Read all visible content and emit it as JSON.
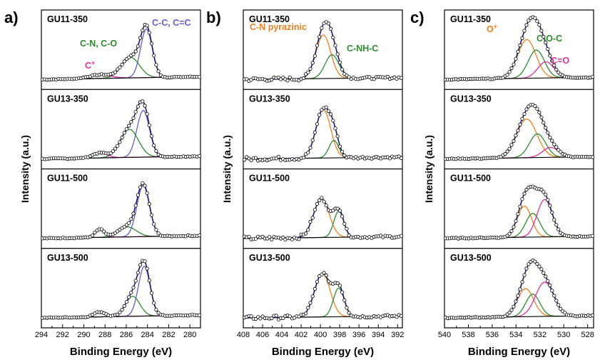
{
  "chart_data": [
    {
      "panel": "a)",
      "type": "line",
      "xlabel": "Binding Energy  (eV)",
      "ylabel": "Intensity  (a.u.)",
      "xlim": [
        294,
        279
      ],
      "reversed_x": true,
      "xticks": [
        "294",
        "292",
        "290",
        "288",
        "286",
        "284",
        "282",
        "280"
      ],
      "annotations": [
        {
          "text": "C-C, C=C",
          "color": "#6a5acd"
        },
        {
          "text": "C-N, C-O",
          "color": "#2e8b2e"
        },
        {
          "text": "C",
          "sup": "+",
          "color": "#e0309a"
        }
      ],
      "colors": {
        "envelope": "#1a1a70",
        "peak_main": "#6a5acd",
        "peak_cn": "#2e8b2e",
        "peak_cplus": "#e0309a",
        "baseline": "#000000"
      },
      "traces": [
        {
          "name": "GU11-350",
          "peaks": [
            {
              "component": "C-C, C=C",
              "center": 284.1,
              "fwhm": 1.3,
              "height": 0.78
            },
            {
              "component": "C-N, C-O",
              "center": 285.6,
              "fwhm": 2.0,
              "height": 0.33
            },
            {
              "component": "C+",
              "center": 288.5,
              "fwhm": 2.4,
              "height": 0.06
            }
          ]
        },
        {
          "name": "GU13-350",
          "peaks": [
            {
              "component": "C-C, C=C",
              "center": 284.4,
              "fwhm": 1.4,
              "height": 0.75
            },
            {
              "component": "C-N, C-O",
              "center": 285.7,
              "fwhm": 2.0,
              "height": 0.45
            },
            {
              "component": "C+",
              "center": 288.5,
              "fwhm": 1.6,
              "height": 0.08
            }
          ]
        },
        {
          "name": "GU11-500",
          "peaks": [
            {
              "component": "C-C, C=C",
              "center": 284.4,
              "fwhm": 1.4,
              "height": 0.82
            },
            {
              "component": "C-N, C-O",
              "center": 285.9,
              "fwhm": 2.0,
              "height": 0.16
            },
            {
              "component": "C+",
              "center": 288.5,
              "fwhm": 1.0,
              "height": 0.13
            }
          ]
        },
        {
          "name": "GU13-500",
          "peaks": [
            {
              "component": "C-C, C=C",
              "center": 284.3,
              "fwhm": 1.3,
              "height": 0.8
            },
            {
              "component": "C-N, C-O",
              "center": 285.4,
              "fwhm": 1.6,
              "height": 0.32
            },
            {
              "component": "C+",
              "center": 288.5,
              "fwhm": 1.3,
              "height": 0.08
            }
          ]
        }
      ]
    },
    {
      "panel": "b)",
      "type": "line",
      "xlabel": "Binding Energy  (eV)",
      "ylabel": "Intensity  (a.u.)",
      "xlim": [
        408,
        391.5
      ],
      "reversed_x": true,
      "xticks": [
        "408",
        "406",
        "404",
        "402",
        "400",
        "398",
        "396",
        "394",
        "392"
      ],
      "annotations": [
        {
          "text": "C-N pyrazinic",
          "color": "#f07f20"
        },
        {
          "text": "C-NH-C",
          "color": "#2e8b2e"
        }
      ],
      "colors": {
        "envelope": "#1a1a70",
        "peak_pyrazinic": "#f07f20",
        "peak_cnhc": "#2e8b2e",
        "baseline": "#000000"
      },
      "traces": [
        {
          "name": "GU11-350",
          "peaks": [
            {
              "component": "C-N pyrazinic",
              "center": 399.7,
              "fwhm": 1.8,
              "height": 0.7
            },
            {
              "component": "C-NH-C",
              "center": 398.8,
              "fwhm": 1.7,
              "height": 0.38
            }
          ]
        },
        {
          "name": "GU13-350",
          "peaks": [
            {
              "component": "C-N pyrazinic",
              "center": 399.7,
              "fwhm": 1.8,
              "height": 0.78
            },
            {
              "component": "C-NH-C",
              "center": 398.6,
              "fwhm": 1.2,
              "height": 0.28
            }
          ]
        },
        {
          "name": "GU11-500",
          "peaks": [
            {
              "component": "C-N pyrazinic",
              "center": 399.9,
              "fwhm": 1.9,
              "height": 0.62
            },
            {
              "component": "C-NH-C",
              "center": 398.1,
              "fwhm": 1.2,
              "height": 0.42
            }
          ]
        },
        {
          "name": "GU13-500",
          "peaks": [
            {
              "component": "C-N pyrazinic",
              "center": 399.8,
              "fwhm": 1.9,
              "height": 0.7
            },
            {
              "component": "C-NH-C",
              "center": 398.1,
              "fwhm": 1.3,
              "height": 0.46
            }
          ]
        }
      ]
    },
    {
      "panel": "c)",
      "type": "line",
      "xlabel": "Binding Energy  (eV)",
      "ylabel": "Intensity  (a.u.)",
      "xlim": [
        540,
        527.5
      ],
      "reversed_x": true,
      "xticks": [
        "540",
        "538",
        "536",
        "534",
        "532",
        "530",
        "528"
      ],
      "annotations": [
        {
          "text": "O",
          "sup": "+",
          "color": "#f07f20"
        },
        {
          "text": "C-O-C",
          "color": "#2e8b2e"
        },
        {
          "text": "C=O",
          "color": "#e0309a"
        }
      ],
      "colors": {
        "envelope": "#1a1a70",
        "peak_oplus": "#f07f20",
        "peak_coc": "#2e8b2e",
        "peak_co": "#e0309a",
        "baseline": "#000000"
      },
      "traces": [
        {
          "name": "GU11-350",
          "peaks": [
            {
              "component": "O+",
              "center": 533.1,
              "fwhm": 1.8,
              "height": 0.62
            },
            {
              "component": "C-O-C",
              "center": 532.3,
              "fwhm": 1.6,
              "height": 0.45
            },
            {
              "component": "C=O",
              "center": 531.5,
              "fwhm": 1.6,
              "height": 0.26
            }
          ]
        },
        {
          "name": "GU13-350",
          "peaks": [
            {
              "component": "O+",
              "center": 533.1,
              "fwhm": 2.0,
              "height": 0.62
            },
            {
              "component": "C-O-C",
              "center": 532.2,
              "fwhm": 1.6,
              "height": 0.38
            },
            {
              "component": "C=O",
              "center": 531.1,
              "fwhm": 1.6,
              "height": 0.16
            }
          ]
        },
        {
          "name": "GU11-500",
          "peaks": [
            {
              "component": "O+",
              "center": 533.3,
              "fwhm": 1.4,
              "height": 0.5
            },
            {
              "component": "C-O-C",
              "center": 532.6,
              "fwhm": 1.4,
              "height": 0.38
            },
            {
              "component": "C=O",
              "center": 531.6,
              "fwhm": 1.5,
              "height": 0.6
            }
          ]
        },
        {
          "name": "GU13-500",
          "peaks": [
            {
              "component": "O+",
              "center": 533.2,
              "fwhm": 1.6,
              "height": 0.45
            },
            {
              "component": "C-O-C",
              "center": 532.6,
              "fwhm": 1.4,
              "height": 0.36
            },
            {
              "component": "C=O",
              "center": 531.6,
              "fwhm": 1.8,
              "height": 0.55
            }
          ]
        }
      ]
    }
  ]
}
